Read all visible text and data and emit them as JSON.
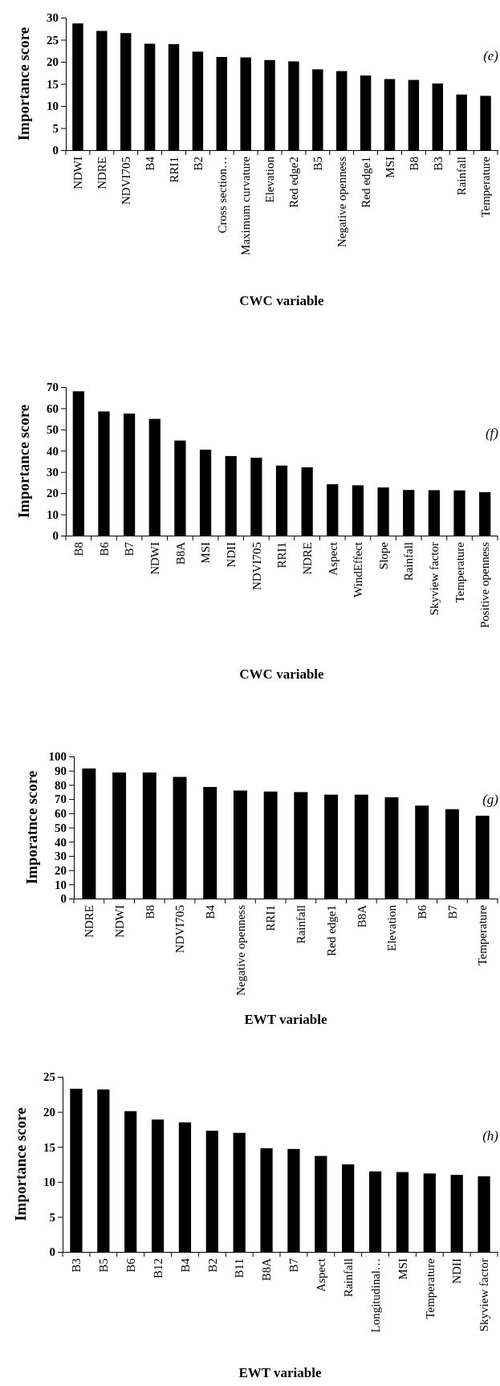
{
  "chart_data": [
    {
      "type": "bar",
      "xlabel": "CWC variable",
      "ylabel": "Importance score",
      "annotations": [
        "(e)"
      ],
      "color": "#000000",
      "ylim": [
        0,
        30
      ],
      "yticks": [
        0,
        5,
        10,
        15,
        20,
        25,
        30
      ],
      "categories": [
        "NDWI",
        "NDRE",
        "NDVI705",
        "B4",
        "RRI1",
        "B2",
        "Cross section…",
        "Maximum curvature",
        "Elevation",
        "Red edge2",
        "B5",
        "Negative openness",
        "Red edge1",
        "MSI",
        "B8",
        "B3",
        "Rainfall",
        "Temperature"
      ],
      "values": [
        28.7,
        27.0,
        26.5,
        24.1,
        24.0,
        22.3,
        21.1,
        21.0,
        20.4,
        20.1,
        18.3,
        17.9,
        16.9,
        16.1,
        15.9,
        15.1,
        12.6,
        12.3
      ]
    },
    {
      "type": "bar",
      "xlabel": "CWC variable",
      "ylabel": "Importance score",
      "annotations": [
        "(f)"
      ],
      "color": "#000000",
      "ylim": [
        0,
        70
      ],
      "yticks": [
        0,
        10,
        20,
        30,
        40,
        50,
        60,
        70
      ],
      "categories": [
        "B8",
        "B6",
        "B7",
        "NDWI",
        "B8A",
        "MSI",
        "NDII",
        "NDVI705",
        "RRI1",
        "NDRE",
        "Aspect",
        "WindEffect",
        "Slope",
        "Rainfall",
        "Skyview factor",
        "Temperature",
        "Positive openness"
      ],
      "values": [
        68,
        58.5,
        57.5,
        55,
        44.8,
        40.5,
        37.5,
        36.7,
        33,
        32.2,
        24.2,
        23.7,
        22.7,
        21.5,
        21.4,
        21.3,
        20.5
      ]
    },
    {
      "type": "bar",
      "xlabel": "EWT variable",
      "ylabel": "Imporatnce score",
      "annotations": [
        "(g)"
      ],
      "color": "#000000",
      "ylim": [
        0,
        100
      ],
      "yticks": [
        0,
        10,
        20,
        30,
        40,
        50,
        60,
        70,
        80,
        90,
        100
      ],
      "categories": [
        "NDRE",
        "NDWI",
        "B8",
        "NDVI705",
        "B4",
        "Negative openness",
        "RRI1",
        "Rainfall",
        "Red edge1",
        "B8A",
        "Elevation",
        "B6",
        "B7",
        "Temperature"
      ],
      "values": [
        91.5,
        88.7,
        88.7,
        85.6,
        78.5,
        76,
        75.3,
        74.9,
        73.1,
        73.1,
        71.3,
        65.4,
        62.9,
        58.3
      ]
    },
    {
      "type": "bar",
      "xlabel": "EWT variable",
      "ylabel": "Importance score",
      "annotations": [
        "(h)"
      ],
      "color": "#000000",
      "ylim": [
        0,
        25
      ],
      "yticks": [
        0,
        5,
        10,
        15,
        20,
        25
      ],
      "categories": [
        "B3",
        "B5",
        "B6",
        "B12",
        "B4",
        "B2",
        "B11",
        "B8A",
        "B7",
        "Aspect",
        "Rainfall",
        "Longitudinal…",
        "MSI",
        "Temperature",
        "NDII",
        "Skyview factor"
      ],
      "values": [
        23.3,
        23.2,
        20.1,
        18.9,
        18.5,
        17.3,
        17.0,
        14.8,
        14.7,
        13.7,
        12.5,
        11.5,
        11.4,
        11.2,
        11.0,
        10.8
      ]
    }
  ]
}
